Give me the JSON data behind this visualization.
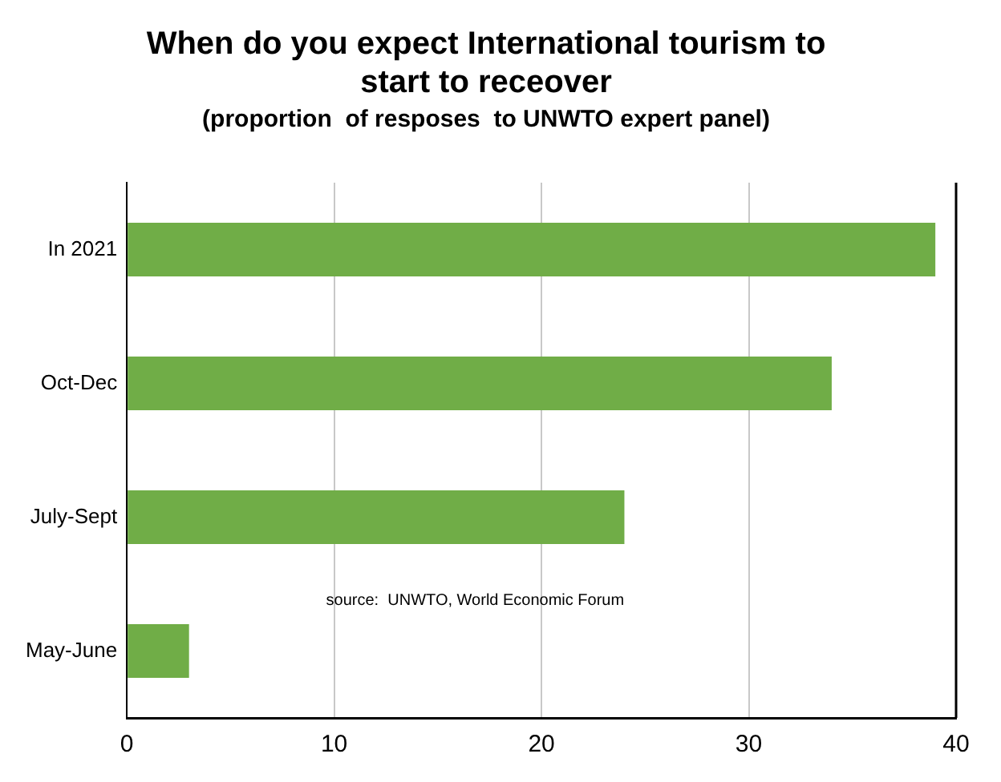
{
  "chart_data": {
    "type": "bar",
    "orientation": "horizontal",
    "title": [
      "When do you expect International tourism to",
      "start to receover"
    ],
    "subtitle": "(proportion  of resposes  to UNWTO expert panel)",
    "categories": [
      "In 2021",
      "Oct-Dec",
      "July-Sept",
      "May-June"
    ],
    "values": [
      39,
      34,
      24,
      3
    ],
    "color": "#70ad47",
    "xlim": [
      0,
      40
    ],
    "xticks": [
      0,
      10,
      20,
      30,
      40
    ],
    "grid": "x",
    "annotations": [
      "source:  UNWTO, World Economic Forum"
    ]
  }
}
